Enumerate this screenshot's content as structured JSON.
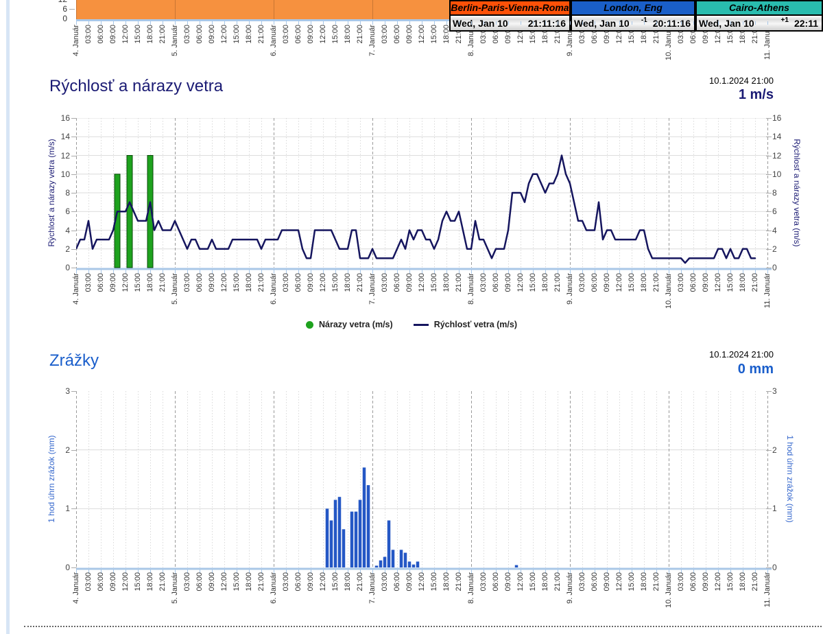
{
  "clocks": [
    {
      "name": "Berlin-Paris-Vienna-Roma",
      "header_bg": "#fd5108",
      "date": "Wed, Jan 10",
      "utc_offset": "",
      "time": "21:11:16"
    },
    {
      "name": "London, Eng",
      "header_bg": "#1a5fc8",
      "date": "Wed, Jan 10",
      "utc_offset": "-1",
      "time": "20:11:16"
    },
    {
      "name": "Cairo-Athens",
      "header_bg": "#29bcae",
      "date": "Wed, Jan 10",
      "utc_offset": "+1",
      "time": "22:11"
    }
  ],
  "time_axis": {
    "days": [
      "4. Január",
      "5. Január",
      "6. Január",
      "7. Január",
      "8. Január",
      "9. Január",
      "10. Január",
      "11. Január"
    ],
    "hours": [
      "03:00",
      "06:00",
      "09:00",
      "12:00",
      "15:00",
      "18:00",
      "21:00"
    ]
  },
  "chart_data": [
    {
      "id": "top-partial-area-chart",
      "type": "area",
      "title": "",
      "fill_color": "#f6913f",
      "axis_color": "#a9c7e7",
      "yticks_visible": [
        "12",
        "6",
        "0"
      ],
      "y_visible_range": [
        0,
        12
      ],
      "x_range": [
        "4. Január",
        "11. Január"
      ]
    },
    {
      "id": "wind",
      "type": "line",
      "title": "Rýchlosť a nárazy vetra",
      "timestamp": "10.1.2024 21:00",
      "current_value": "1 m/s",
      "ylabel_left": "Rýchlosť a nárazy vetra (m/s)",
      "ylabel_right": "Rýchlosť a nárazy vetra (m/s)",
      "ylim": [
        0,
        16
      ],
      "yticks": [
        "16",
        "14",
        "12",
        "10",
        "8",
        "6",
        "4",
        "2",
        "0"
      ],
      "x_start": "4. Január 00:00",
      "x_step_hours": 1,
      "legend": [
        {
          "label": "Nárazy vetra (m/s)",
          "color": "#1ea21e",
          "marker": "circle"
        },
        {
          "label": "Rýchlosť vetra (m/s)",
          "color": "#15155e",
          "marker": "line"
        }
      ],
      "series": [
        {
          "name": "Rýchlosť vetra (m/s)",
          "type": "line",
          "color": "#15155e",
          "values": [
            2,
            3,
            3,
            5,
            2,
            3,
            3,
            3,
            3,
            4,
            6,
            6,
            6,
            7,
            6,
            5,
            5,
            5,
            7,
            4,
            5,
            4,
            4,
            4,
            5,
            4,
            3,
            2,
            3,
            3,
            2,
            2,
            2,
            3,
            2,
            2,
            2,
            2,
            3,
            3,
            3,
            3,
            3,
            3,
            3,
            2,
            3,
            3,
            3,
            3,
            4,
            4,
            4,
            4,
            4,
            2,
            1,
            1,
            4,
            4,
            4,
            4,
            4,
            3,
            2,
            2,
            2,
            4,
            4,
            1,
            1,
            1,
            2,
            1,
            1,
            1,
            1,
            1,
            2,
            3,
            2,
            4,
            3,
            4,
            4,
            3,
            3,
            2,
            3,
            5,
            6,
            5,
            5,
            6,
            4,
            2,
            2,
            5,
            3,
            3,
            2,
            1,
            2,
            2,
            2,
            4,
            8,
            8,
            8,
            7,
            9,
            10,
            10,
            9,
            8,
            9,
            9,
            10,
            12,
            10,
            9,
            7,
            5,
            5,
            4,
            4,
            4,
            7,
            3,
            4,
            4,
            3,
            3,
            3,
            3,
            3,
            3,
            4,
            4,
            2,
            1,
            1,
            1,
            1,
            1,
            1,
            1,
            1,
            0.5,
            1,
            1,
            1,
            1,
            1,
            1,
            1,
            2,
            2,
            1,
            2,
            1,
            1,
            2,
            2,
            1,
            1
          ]
        },
        {
          "name": "Nárazy vetra (m/s)",
          "type": "bar",
          "color": "#1ea21e",
          "border_color": "#0a4a0a",
          "points": [
            {
              "hour": 10,
              "value": 10
            },
            {
              "hour": 13,
              "value": 12
            },
            {
              "hour": 18,
              "value": 12
            }
          ]
        }
      ]
    },
    {
      "id": "precipitation",
      "type": "bar",
      "title": "Zrážky",
      "timestamp": "10.1.2024 21:00",
      "current_value": "0 mm",
      "ylabel_left": "1 hod úhrn zrážok (mm)",
      "ylabel_right": "1 hod úhrn zrážok (mm)",
      "ylim": [
        0,
        3
      ],
      "yticks": [
        "3",
        "2",
        "1",
        "0"
      ],
      "x_start": "4. Január 00:00",
      "bar_color": "#2457c5",
      "bars": [
        {
          "hour": 61,
          "mm": 1.0
        },
        {
          "hour": 62,
          "mm": 0.8
        },
        {
          "hour": 63,
          "mm": 1.15
        },
        {
          "hour": 64,
          "mm": 1.2
        },
        {
          "hour": 65,
          "mm": 0.65
        },
        {
          "hour": 67,
          "mm": 0.95
        },
        {
          "hour": 68,
          "mm": 0.95
        },
        {
          "hour": 69,
          "mm": 1.15
        },
        {
          "hour": 70,
          "mm": 1.7
        },
        {
          "hour": 71,
          "mm": 1.4
        },
        {
          "hour": 73,
          "mm": 0.03
        },
        {
          "hour": 74,
          "mm": 0.12
        },
        {
          "hour": 75,
          "mm": 0.18
        },
        {
          "hour": 76,
          "mm": 0.8
        },
        {
          "hour": 77,
          "mm": 0.3
        },
        {
          "hour": 79,
          "mm": 0.3
        },
        {
          "hour": 80,
          "mm": 0.25
        },
        {
          "hour": 81,
          "mm": 0.1
        },
        {
          "hour": 82,
          "mm": 0.05
        },
        {
          "hour": 83,
          "mm": 0.1
        },
        {
          "hour": 107,
          "mm": 0.04
        }
      ]
    }
  ]
}
